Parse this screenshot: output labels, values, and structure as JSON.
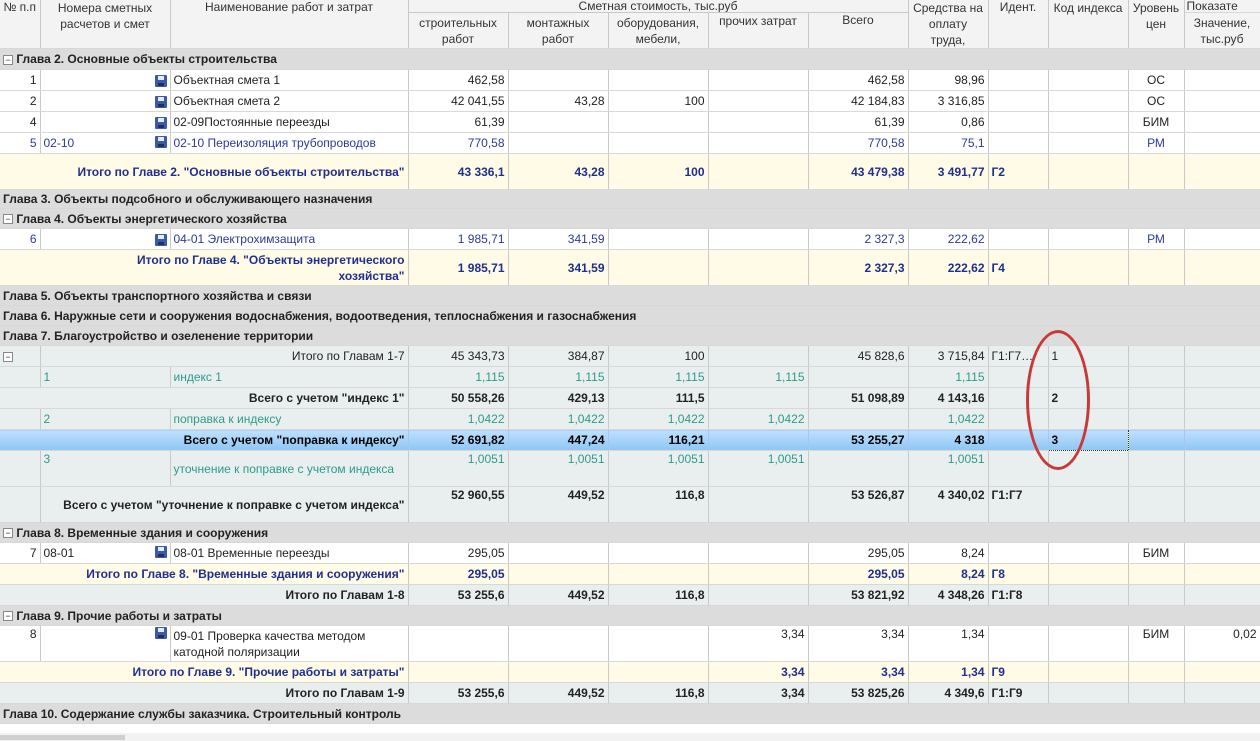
{
  "header": {
    "num": "№ п.п",
    "smeta_nums": "Номера сметных расчетов и смет",
    "name": "Наименование работ и затрат",
    "cost_group": "Сметная стоимость, тыс.руб",
    "build": "строительных работ",
    "mount": "монтажных работ",
    "equip": "оборудования, мебели,",
    "other": "прочих затрат",
    "total": "Всего",
    "wage": "Средства на оплату труда,",
    "ident": "Идент.",
    "code": "Код индекса",
    "level": "Уровень цен",
    "indicator": "Показате",
    "value": "Значение, тыс.руб"
  },
  "chapters": {
    "ch2": "Глава 2. Основные объекты строительства",
    "ch3": "Глава 3. Объекты подсобного и обслуживающего назначения",
    "ch4": "Глава 4. Объекты энергетического хозяйства",
    "ch5": "Глава 5. Объекты транспортного хозяйства и связи",
    "ch6": "Глава 6. Наружные сети и сооружения водоснабжения, водоотведения, теплоснабжения и газоснабжения",
    "ch7": "Глава 7. Благоустройство и озеленение территории",
    "ch8": "Глава 8. Временные здания и сооружения",
    "ch9": "Глава 9. Прочие работы и затраты",
    "ch10": "Глава 10. Содержание службы заказчика. Строительный контроль"
  },
  "rows": {
    "r1": {
      "num": "1",
      "name": "Объектная смета 1",
      "build": "462,58",
      "total": "462,58",
      "wage": "98,96",
      "level": "ОС"
    },
    "r2": {
      "num": "2",
      "name": "Объектная смета 2",
      "build": "42 041,55",
      "mount": "43,28",
      "equip": "100",
      "total": "42 184,83",
      "wage": "3 316,85",
      "level": "ОС"
    },
    "r3": {
      "num": "4",
      "name": "02-09Постоянные переезды",
      "build": "61,39",
      "total": "61,39",
      "wage": "0,86",
      "level": "БИМ"
    },
    "r4": {
      "num": "5",
      "code": "02-10",
      "name": "02-10 Переизоляция трубопроводов",
      "build": "770,58",
      "total": "770,58",
      "wage": "75,1",
      "level": "РМ"
    },
    "t2": {
      "name": "Итого по Главе 2. \"Основные объекты строительства\"",
      "build": "43 336,1",
      "mount": "43,28",
      "equip": "100",
      "total": "43 479,38",
      "wage": "3 491,77",
      "ident": "Г2"
    },
    "r5": {
      "num": "6",
      "name": "04-01 Электрохимзащита",
      "build": "1 985,71",
      "mount": "341,59",
      "total": "2 327,3",
      "wage": "222,62",
      "level": "РМ"
    },
    "t4": {
      "name": "Итого по Главе 4. \"Объекты энергетического хозяйства\"",
      "build": "1 985,71",
      "mount": "341,59",
      "total": "2 327,3",
      "wage": "222,62",
      "ident": "Г4"
    },
    "t17": {
      "name": "Итого по Главам 1-7",
      "build": "45 343,73",
      "mount": "384,87",
      "equip": "100",
      "total": "45 828,6",
      "wage": "3 715,84",
      "ident": "Г1:Г7…",
      "code": "1"
    },
    "i1": {
      "num": "1",
      "name": "индекс 1",
      "build": "1,115",
      "mount": "1,115",
      "equip": "1,115",
      "other": "1,115",
      "wage": "1,115"
    },
    "s1": {
      "name": "Всего с учетом \"индекс 1\"",
      "build": "50 558,26",
      "mount": "429,13",
      "equip": "111,5",
      "total": "51 098,89",
      "wage": "4 143,16",
      "code": "2"
    },
    "i2": {
      "num": "2",
      "name": "поправка к индексу",
      "build": "1,0422",
      "mount": "1,0422",
      "equip": "1,0422",
      "other": "1,0422",
      "wage": "1,0422"
    },
    "s2": {
      "name": "Всего с учетом \"поправка к индексу\"",
      "build": "52 691,82",
      "mount": "447,24",
      "equip": "116,21",
      "total": "53 255,27",
      "wage": "4 318",
      "code": "3"
    },
    "i3": {
      "num": "3",
      "name": "уточнение к поправке с учетом индекса",
      "build": "1,0051",
      "mount": "1,0051",
      "equip": "1,0051",
      "other": "1,0051",
      "wage": "1,0051"
    },
    "s3": {
      "name": "Всего с учетом \"уточнение к поправке с учетом индекса\"",
      "build": "52 960,55",
      "mount": "449,52",
      "equip": "116,8",
      "total": "53 526,87",
      "wage": "4 340,02",
      "ident": "Г1:Г7"
    },
    "r7": {
      "num": "7",
      "code": "08-01",
      "name": "08-01 Временные переезды",
      "build": "295,05",
      "total": "295,05",
      "wage": "8,24",
      "level": "БИМ"
    },
    "t8": {
      "name": "Итого по Главе 8. \"Временные здания и сооружения\"",
      "build": "295,05",
      "total": "295,05",
      "wage": "8,24",
      "ident": "Г8"
    },
    "t18": {
      "name": "Итого по Главам 1-8",
      "build": "53 255,6",
      "mount": "449,52",
      "equip": "116,8",
      "total": "53 821,92",
      "wage": "4 348,26",
      "ident": "Г1:Г8"
    },
    "r8": {
      "num": "8",
      "name": "09-01 Проверка качества методом катодной поляризации",
      "other": "3,34",
      "total": "3,34",
      "wage": "1,34",
      "level": "БИМ",
      "value": "0,02"
    },
    "t9": {
      "name": "Итого по Главе 9. \"Прочие работы и затраты\"",
      "other": "3,34",
      "total": "3,34",
      "wage": "1,34",
      "ident": "Г9"
    },
    "t19": {
      "name": "Итого по Главам 1-9",
      "build": "53 255,6",
      "mount": "449,52",
      "equip": "116,8",
      "other": "3,34",
      "total": "53 825,26",
      "wage": "4 349,6",
      "ident": "Г1:Г9"
    }
  },
  "icons": {
    "toggle": "minus-toggle-icon",
    "save": "floppy-disk-icon"
  },
  "colors": {
    "chapter_bg": "#dcdcdc",
    "total_bg": "#fffbe6",
    "selected": "#8ec6f2",
    "annotation": "#c83a38",
    "link_text": "#2a3a9a",
    "index_text": "#2c9a8a"
  }
}
